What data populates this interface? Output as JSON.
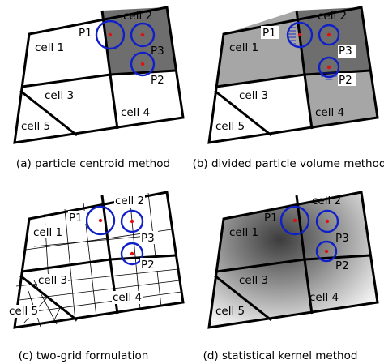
{
  "colors": {
    "particle_circle": "#1020c8",
    "particle_center": "#e01010",
    "cell_dark": "#6e6e6e",
    "cell_mid": "#a6a6a6",
    "kernel_core": "#3c3c3c"
  },
  "panels": [
    {
      "id": "a",
      "caption": "(a) particle centroid method",
      "cells": [
        "cell 1",
        "cell 2",
        "cell 3",
        "cell 4",
        "cell 5"
      ],
      "particles": [
        "P1",
        "P2",
        "P3"
      ]
    },
    {
      "id": "b",
      "caption": "(b) divided particle volume method",
      "cells": [
        "cell 1",
        "cell 2",
        "cell 3",
        "cell 4",
        "cell 5"
      ],
      "particles": [
        "P1",
        "P2",
        "P3"
      ]
    },
    {
      "id": "c",
      "caption": "(c) two-grid formulation",
      "cells": [
        "cell 1",
        "cell 2",
        "cell 3",
        "cell 4",
        "cell 5"
      ],
      "particles": [
        "P1",
        "P2",
        "P3"
      ]
    },
    {
      "id": "d",
      "caption": "(d) statistical kernel method",
      "cells": [
        "cell 1",
        "cell 2",
        "cell 3",
        "cell 4",
        "cell 5"
      ],
      "particles": [
        "P1",
        "P2",
        "P3"
      ]
    }
  ]
}
